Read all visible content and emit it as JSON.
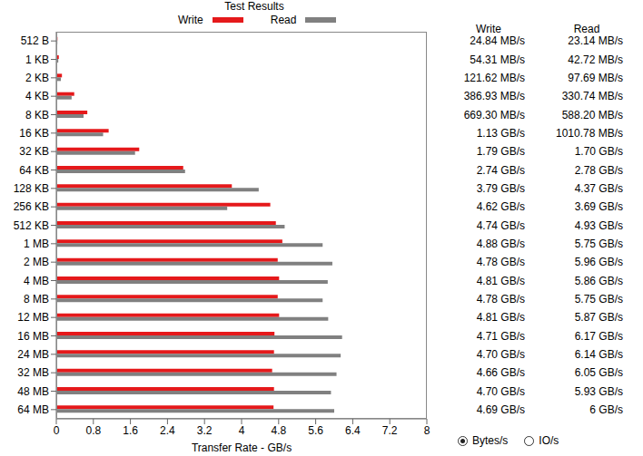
{
  "chart_data": {
    "type": "bar",
    "title": "Test Results",
    "orientation": "horizontal",
    "categories": [
      "512 B",
      "1 KB",
      "2 KB",
      "4 KB",
      "8 KB",
      "16 KB",
      "32 KB",
      "64 KB",
      "128 KB",
      "256 KB",
      "512 KB",
      "1 MB",
      "2 MB",
      "4 MB",
      "8 MB",
      "12 MB",
      "16 MB",
      "24 MB",
      "32 MB",
      "48 MB",
      "64 MB"
    ],
    "series": [
      {
        "name": "Write",
        "color": "#e5191b",
        "values": [
          0.02484,
          0.05431,
          0.12162,
          0.38693,
          0.6693,
          1.13,
          1.79,
          2.74,
          3.79,
          4.62,
          4.74,
          4.88,
          4.78,
          4.81,
          4.78,
          4.81,
          4.71,
          4.7,
          4.66,
          4.7,
          4.69
        ],
        "value_labels": [
          "24.84 MB/s",
          "54.31 MB/s",
          "121.62 MB/s",
          "386.93 MB/s",
          "669.30 MB/s",
          "1.13 GB/s",
          "1.79 GB/s",
          "2.74 GB/s",
          "3.79 GB/s",
          "4.62 GB/s",
          "4.74 GB/s",
          "4.88 GB/s",
          "4.78 GB/s",
          "4.81 GB/s",
          "4.78 GB/s",
          "4.81 GB/s",
          "4.71 GB/s",
          "4.70 GB/s",
          "4.66 GB/s",
          "4.70 GB/s",
          "4.69 GB/s"
        ]
      },
      {
        "name": "Read",
        "color": "#808080",
        "values": [
          0.02314,
          0.04272,
          0.09769,
          0.33074,
          0.5882,
          1.01078,
          1.7,
          2.78,
          4.37,
          3.69,
          4.93,
          5.75,
          5.96,
          5.86,
          5.75,
          5.87,
          6.17,
          6.14,
          6.05,
          5.93,
          6
        ],
        "value_labels": [
          "23.14 MB/s",
          "42.72 MB/s",
          "97.69 MB/s",
          "330.74 MB/s",
          "588.20 MB/s",
          "1010.78 MB/s",
          "1.70 GB/s",
          "2.78 GB/s",
          "4.37 GB/s",
          "3.69 GB/s",
          "4.93 GB/s",
          "5.75 GB/s",
          "5.96 GB/s",
          "5.86 GB/s",
          "5.75 GB/s",
          "5.87 GB/s",
          "6.17 GB/s",
          "6.14 GB/s",
          "6.05 GB/s",
          "5.93 GB/s",
          "6 GB/s"
        ]
      }
    ],
    "xlabel": "Transfer Rate - GB/s",
    "xlim": [
      0,
      8
    ],
    "xticks": [
      0,
      0.8,
      1.6,
      2.4,
      3.2,
      4,
      4.8,
      5.6,
      6.4,
      7.2,
      8
    ],
    "grid": false,
    "legend": "top",
    "radio_options": [
      "Bytes/s",
      "IO/s"
    ]
  }
}
